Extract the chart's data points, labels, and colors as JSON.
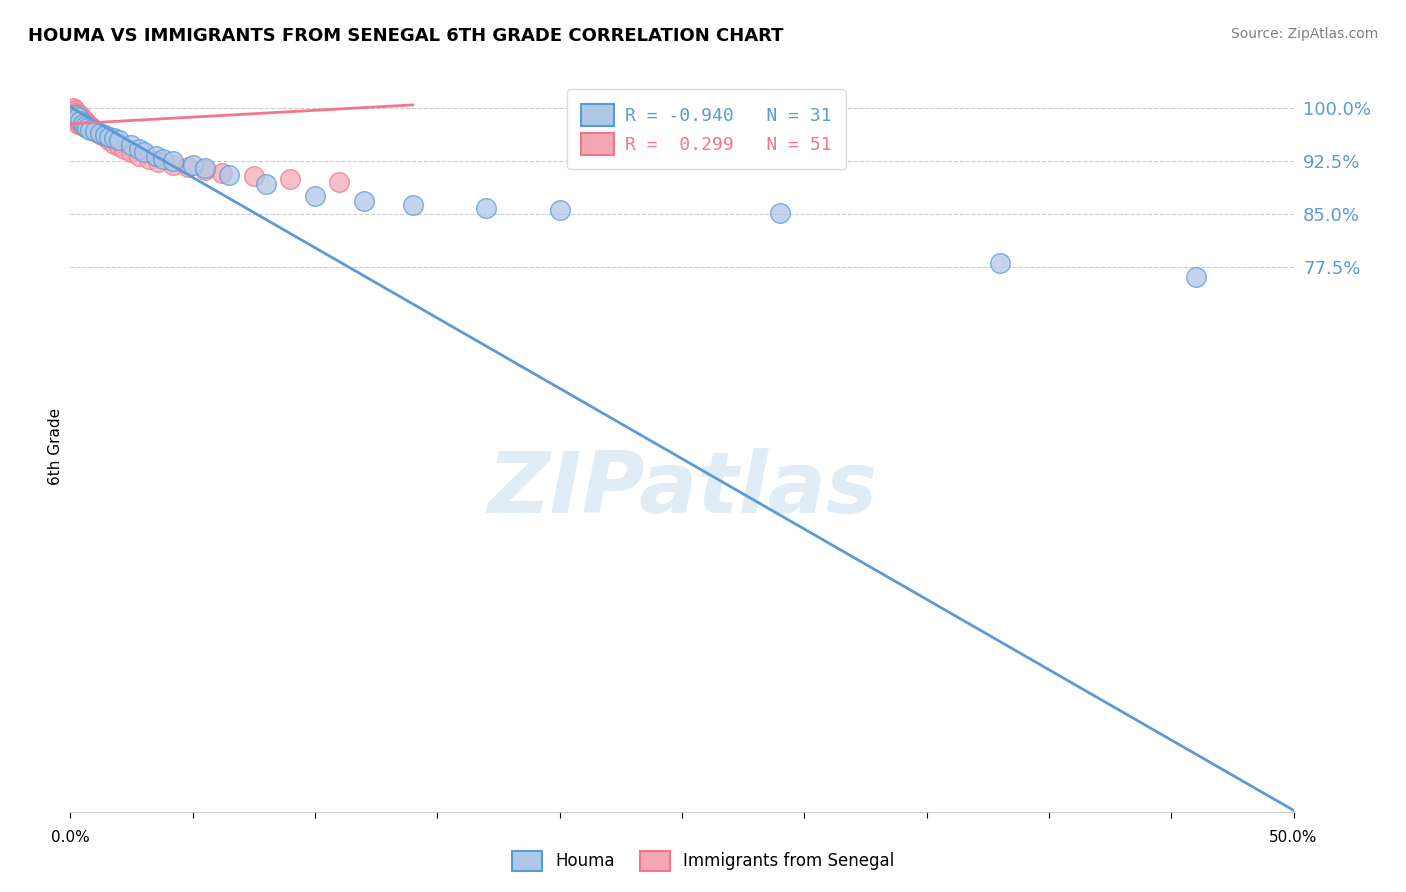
{
  "title": "HOUMA VS IMMIGRANTS FROM SENEGAL 6TH GRADE CORRELATION CHART",
  "source": "Source: ZipAtlas.com",
  "ylabel": "6th Grade",
  "xmin": 0.0,
  "xmax": 0.5,
  "ymin": 0.0,
  "ymax": 1.04,
  "yticks": [
    0.775,
    0.85,
    0.925,
    1.0
  ],
  "ytick_labels": [
    "77.5%",
    "85.0%",
    "92.5%",
    "100.0%"
  ],
  "blue_color": "#5B9BD5",
  "pink_color": "#F4768A",
  "blue_fill": "#AEC8E8",
  "pink_fill": "#F4A8B4",
  "legend_blue_R": "-0.940",
  "legend_blue_N": "31",
  "legend_pink_R": "0.299",
  "legend_pink_N": "51",
  "legend_label_blue": "Houma",
  "legend_label_pink": "Immigrants from Senegal",
  "blue_scatter_x": [
    0.002,
    0.003,
    0.004,
    0.005,
    0.006,
    0.007,
    0.008,
    0.01,
    0.012,
    0.014,
    0.016,
    0.018,
    0.02,
    0.025,
    0.028,
    0.03,
    0.035,
    0.038,
    0.042,
    0.05,
    0.055,
    0.065,
    0.08,
    0.1,
    0.12,
    0.14,
    0.17,
    0.2,
    0.29,
    0.38,
    0.46
  ],
  "blue_scatter_y": [
    0.99,
    0.988,
    0.982,
    0.978,
    0.975,
    0.972,
    0.97,
    0.968,
    0.965,
    0.962,
    0.96,
    0.958,
    0.955,
    0.948,
    0.942,
    0.938,
    0.932,
    0.928,
    0.925,
    0.92,
    0.915,
    0.905,
    0.893,
    0.875,
    0.868,
    0.862,
    0.858,
    0.855,
    0.852,
    0.78,
    0.76
  ],
  "pink_scatter_x": [
    0.001,
    0.001,
    0.001,
    0.001,
    0.001,
    0.002,
    0.002,
    0.002,
    0.002,
    0.003,
    0.003,
    0.003,
    0.003,
    0.003,
    0.004,
    0.004,
    0.004,
    0.004,
    0.005,
    0.005,
    0.005,
    0.005,
    0.006,
    0.006,
    0.006,
    0.007,
    0.007,
    0.008,
    0.008,
    0.009,
    0.01,
    0.01,
    0.011,
    0.012,
    0.013,
    0.015,
    0.016,
    0.018,
    0.02,
    0.022,
    0.025,
    0.028,
    0.032,
    0.036,
    0.042,
    0.048,
    0.055,
    0.062,
    0.075,
    0.09,
    0.11
  ],
  "pink_scatter_y": [
    1.0,
    0.996,
    0.992,
    0.988,
    0.984,
    0.998,
    0.994,
    0.99,
    0.985,
    0.992,
    0.988,
    0.985,
    0.982,
    0.978,
    0.99,
    0.986,
    0.982,
    0.978,
    0.985,
    0.982,
    0.978,
    0.975,
    0.982,
    0.978,
    0.975,
    0.978,
    0.975,
    0.975,
    0.972,
    0.972,
    0.97,
    0.968,
    0.966,
    0.964,
    0.962,
    0.958,
    0.955,
    0.95,
    0.946,
    0.942,
    0.938,
    0.932,
    0.928,
    0.924,
    0.92,
    0.916,
    0.912,
    0.908,
    0.904,
    0.9,
    0.896
  ],
  "blue_line_x0": 0.0,
  "blue_line_x1": 0.5,
  "blue_line_y0": 1.002,
  "blue_line_y1": 0.002,
  "pink_line_x0": 0.0,
  "pink_line_x1": 0.14,
  "pink_line_y0": 0.978,
  "pink_line_y1": 1.005,
  "watermark": "ZIPatlas",
  "background_color": "#FFFFFF",
  "grid_color": "#CCCCCC"
}
